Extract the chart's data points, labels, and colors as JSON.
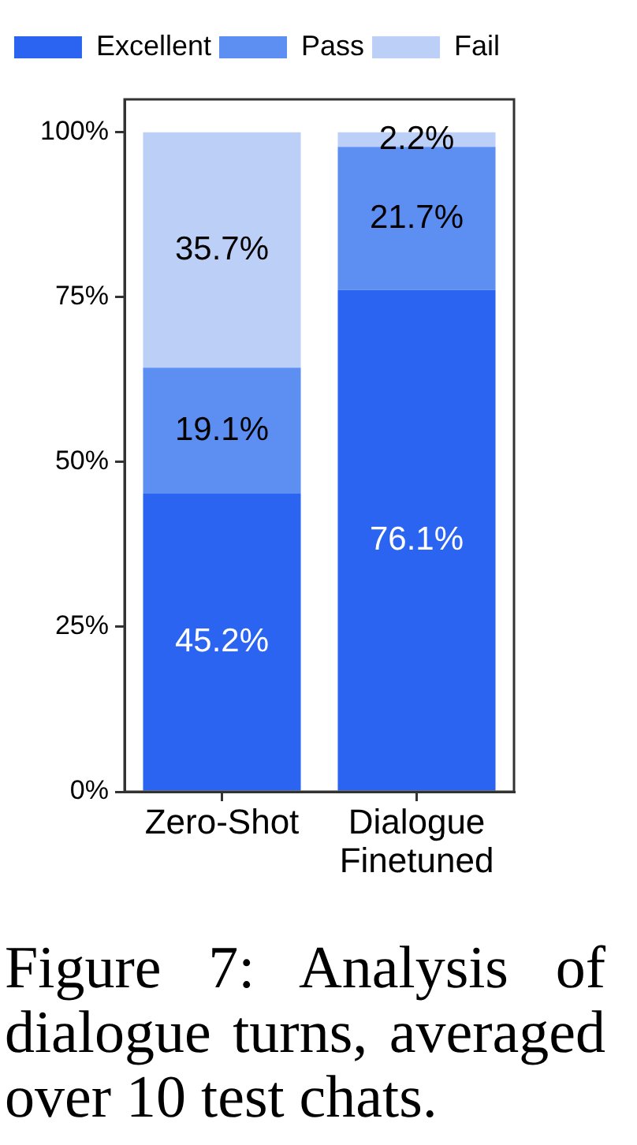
{
  "chart_data": {
    "type": "bar",
    "stacked": true,
    "categories": [
      "Zero-Shot",
      "Dialogue Finetuned"
    ],
    "series": [
      {
        "name": "Excellent",
        "color": "#2a64f0",
        "values": [
          45.2,
          76.1
        ],
        "value_labels": [
          "45.2%",
          "76.1%"
        ]
      },
      {
        "name": "Pass",
        "color": "#5d8ff2",
        "values": [
          19.1,
          21.7
        ],
        "value_labels": [
          "19.1%",
          "21.7%"
        ]
      },
      {
        "name": "Fail",
        "color": "#bcd0f7",
        "values": [
          35.7,
          2.2
        ],
        "value_labels": [
          "35.7%",
          "2.2%"
        ]
      }
    ],
    "ylim": [
      0,
      105
    ],
    "yticks": [
      {
        "value": 0,
        "label": "0%"
      },
      {
        "value": 25,
        "label": "25%"
      },
      {
        "value": 50,
        "label": "50%"
      },
      {
        "value": 75,
        "label": "75%"
      },
      {
        "value": 100,
        "label": "100%"
      }
    ],
    "grid": false,
    "legend": "top",
    "annotations": [
      "Figure 7: Analysis of dialogue turns, averaged over 10 test chats."
    ]
  }
}
